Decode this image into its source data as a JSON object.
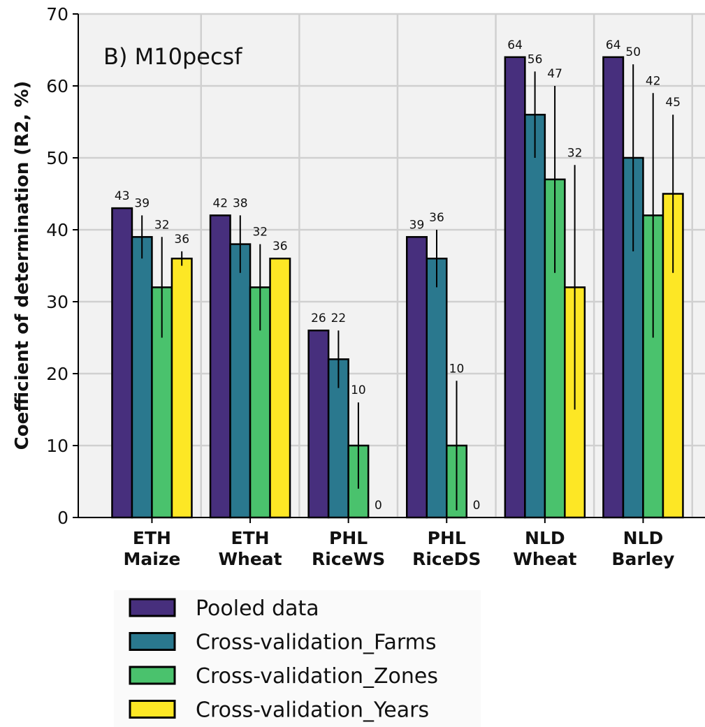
{
  "chart_data": {
    "type": "bar",
    "title": "B) M10pecsf",
    "y_label": "Coefficient of determination (R2, %)",
    "categories": [
      [
        "ETH",
        "Maize"
      ],
      [
        "ETH",
        "Wheat"
      ],
      [
        "PHL",
        "RiceWS"
      ],
      [
        "PHL",
        "RiceDS"
      ],
      [
        "NLD",
        "Wheat"
      ],
      [
        "NLD",
        "Barley"
      ]
    ],
    "series": [
      {
        "name": "Pooled data",
        "color": "#472f7d",
        "values": [
          43,
          42,
          26,
          39,
          64,
          64
        ],
        "errors": [
          null,
          null,
          null,
          null,
          null,
          null
        ]
      },
      {
        "name": "Cross-validation_Farms",
        "color": "#2a788e",
        "values": [
          39,
          38,
          22,
          36,
          56,
          50
        ],
        "errors": [
          3,
          4,
          4,
          4,
          6,
          13
        ]
      },
      {
        "name": "Cross-validation_Zones",
        "color": "#4ac26d",
        "values": [
          32,
          32,
          10,
          10,
          47,
          42
        ],
        "errors": [
          7,
          6,
          6,
          9,
          13,
          17
        ]
      },
      {
        "name": "Cross-validation_Years",
        "color": "#fde725",
        "values": [
          36,
          36,
          0,
          0,
          32,
          45
        ],
        "errors": [
          1,
          null,
          null,
          null,
          17,
          11
        ]
      }
    ],
    "ylim": [
      0,
      70
    ],
    "yticks": [
      0,
      10,
      20,
      30,
      40,
      50,
      60,
      70
    ],
    "grid": true
  }
}
